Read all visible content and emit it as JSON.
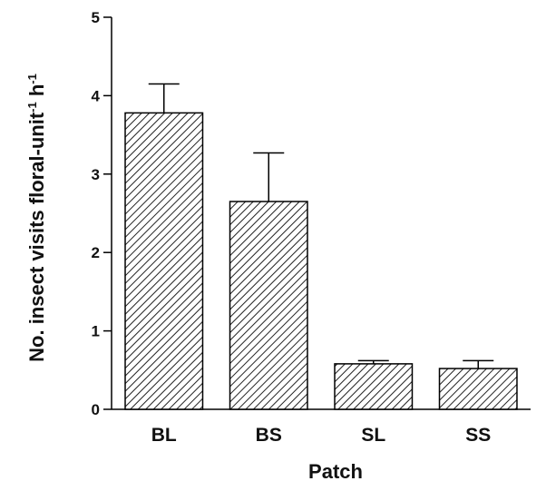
{
  "chart_data": {
    "type": "bar",
    "categories": [
      "BL",
      "BS",
      "SL",
      "SS"
    ],
    "values": [
      3.78,
      2.65,
      0.58,
      0.52
    ],
    "errors": [
      0.37,
      0.62,
      0.04,
      0.1
    ],
    "xlabel": "Patch",
    "ylabel_main": "No. insect visits floral-unit",
    "ylabel_sup1": "-1",
    "ylabel_mid": " h",
    "ylabel_sup2": "-1",
    "ylim": [
      0,
      5
    ],
    "yticks": [
      "0",
      "1",
      "2",
      "3",
      "4",
      "5"
    ],
    "bar_fill": "hatched",
    "grid": false
  }
}
